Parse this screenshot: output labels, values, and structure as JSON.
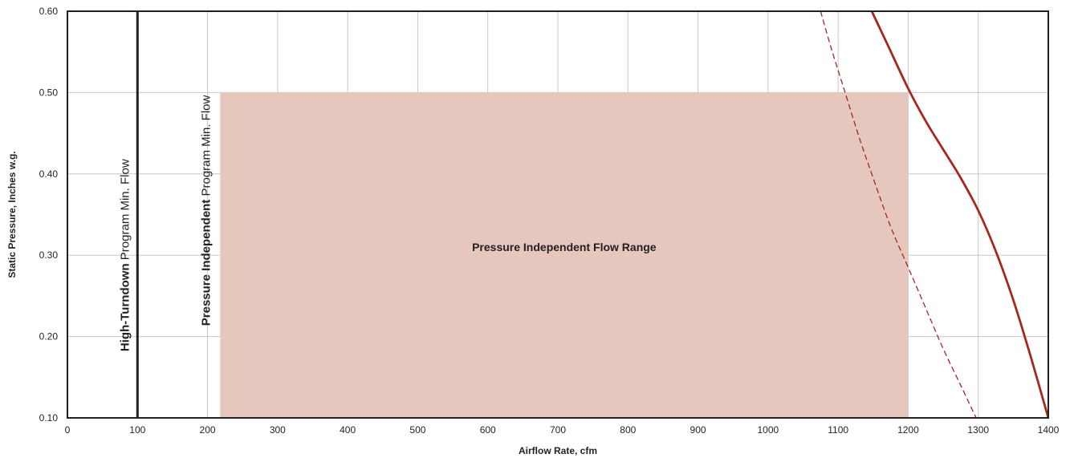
{
  "chart_data": {
    "type": "line",
    "xlabel": "Airflow Rate, cfm",
    "ylabel": "Static Pressure, Inches w.g.",
    "xlim": [
      0,
      1400
    ],
    "ylim": [
      0.1,
      0.6
    ],
    "x_ticks": [
      0,
      100,
      200,
      300,
      400,
      500,
      600,
      700,
      800,
      900,
      1000,
      1100,
      1200,
      1300,
      1400
    ],
    "x_tick_labels": [
      "0",
      "100",
      "200",
      "300",
      "400",
      "500",
      "600",
      "700",
      "800",
      "900",
      "1000",
      "1100",
      "1200",
      "1300",
      "1400"
    ],
    "y_ticks": [
      0.1,
      0.2,
      0.3,
      0.4,
      0.5,
      0.6
    ],
    "y_tick_labels": [
      "0.10",
      "0.20",
      "0.30",
      "0.40",
      "0.50",
      "0.60"
    ],
    "grid": true,
    "region": {
      "label": "Pressure Independent Flow Range",
      "x": [
        218,
        1200
      ],
      "y": [
        0.1,
        0.5
      ],
      "color": "#e6c7bd"
    },
    "reference_lines": [
      {
        "x": 100,
        "label_bold": "High-Turndown",
        "label_normal": " Program Min. Flow",
        "color": "#231f20"
      },
      {
        "x": 218,
        "label_bold": "Pressure Independent",
        "label_normal": " Program Min. Flow"
      }
    ],
    "series": [
      {
        "style": "solid",
        "color": "#a3281e",
        "x": [
          1148,
          1170,
          1200,
          1225,
          1250,
          1275,
          1300,
          1325,
          1350,
          1375,
          1400
        ],
        "y": [
          0.6,
          0.56,
          0.505,
          0.465,
          0.43,
          0.395,
          0.355,
          0.305,
          0.245,
          0.175,
          0.1
        ]
      },
      {
        "style": "dashed",
        "color": "#a3281e",
        "x": [
          1075,
          1090,
          1110,
          1130,
          1150,
          1175,
          1200,
          1225,
          1250,
          1275,
          1297
        ],
        "y": [
          0.6,
          0.555,
          0.5,
          0.445,
          0.395,
          0.335,
          0.285,
          0.235,
          0.185,
          0.14,
          0.1
        ]
      }
    ]
  }
}
